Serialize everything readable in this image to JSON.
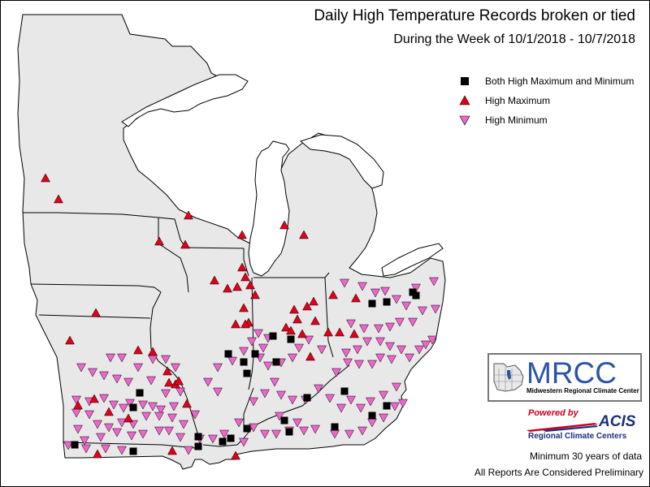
{
  "title": "Daily High Temperature Records broken or tied",
  "subtitle": "During the Week of 10/1/2018 - 10/7/2018",
  "legend": [
    {
      "symbol": "square",
      "color": "#000000",
      "label": "Both High Maximum and Minimum"
    },
    {
      "symbol": "triangle-up",
      "color": "#e0001b",
      "label": "High Maximum"
    },
    {
      "symbol": "triangle-down",
      "color": "#ee66cc",
      "label": "High Minimum"
    }
  ],
  "logo": {
    "name": "MRCC",
    "subtitle": "Midwestern Regional Climate Center"
  },
  "acis": {
    "powered_by": "Powered by",
    "name": "ACIS",
    "subtitle": "Regional Climate Centers"
  },
  "notes": {
    "minimum": "Minimum 30 years of data",
    "preliminary": "All Reports Are Considered Preliminary"
  },
  "colors": {
    "land": "#e8e8e8",
    "water": "#ffffff",
    "border": "#000000",
    "both": "#000000",
    "max": "#e0001b",
    "min": "#ee66cc"
  }
}
